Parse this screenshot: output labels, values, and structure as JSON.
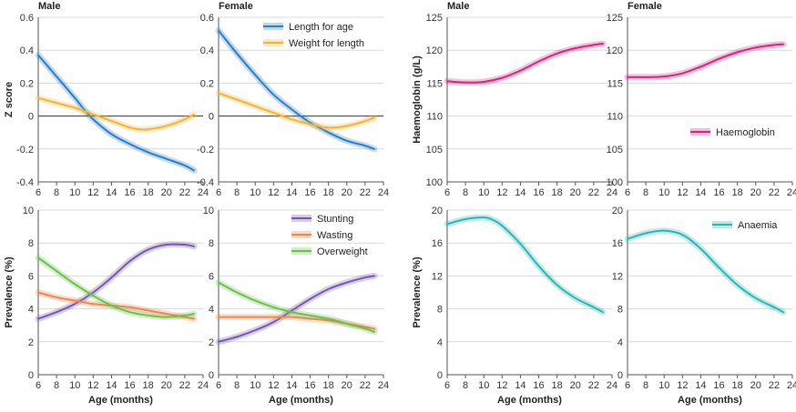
{
  "chart_data": [
    {
      "type": "line",
      "title": "Male",
      "ylabel": "Z score",
      "xlabel": "",
      "xlim": [
        6,
        24
      ],
      "ylim": [
        -0.4,
        0.6
      ],
      "xticks": [
        6,
        8,
        10,
        12,
        14,
        16,
        18,
        20,
        22,
        24
      ],
      "yticks": [
        -0.4,
        -0.2,
        0,
        0.2,
        0.4,
        0.6
      ],
      "reference_line": 0,
      "grid": "horizontal",
      "series": [
        {
          "name": "Length for age",
          "color": "#2a7ec8",
          "x": [
            6,
            8,
            10,
            11,
            12,
            14,
            16,
            18,
            20,
            22,
            23
          ],
          "y": [
            0.37,
            0.24,
            0.11,
            0.04,
            -0.02,
            -0.11,
            -0.17,
            -0.22,
            -0.26,
            -0.3,
            -0.33
          ]
        },
        {
          "name": "Weight for length",
          "color": "#f5b335",
          "x": [
            6,
            8,
            10,
            12,
            14,
            16,
            17,
            18,
            20,
            22,
            23
          ],
          "y": [
            0.11,
            0.08,
            0.05,
            0.01,
            -0.03,
            -0.07,
            -0.08,
            -0.08,
            -0.06,
            -0.02,
            0.01
          ]
        }
      ]
    },
    {
      "type": "line",
      "title": "Female",
      "ylabel": "",
      "xlabel": "",
      "xlim": [
        6,
        24
      ],
      "ylim": [
        -0.4,
        0.6
      ],
      "xticks": [
        6,
        8,
        10,
        12,
        14,
        16,
        18,
        20,
        22,
        24
      ],
      "yticks": [
        -0.4,
        -0.2,
        0,
        0.2,
        0.4,
        0.6
      ],
      "reference_line": 0,
      "grid": "horizontal",
      "legend": "top-right",
      "series": [
        {
          "name": "Length for age",
          "color": "#2a7ec8",
          "x": [
            6,
            8,
            10,
            12,
            14,
            16,
            18,
            20,
            22,
            23
          ],
          "y": [
            0.52,
            0.38,
            0.25,
            0.13,
            0.04,
            -0.04,
            -0.1,
            -0.15,
            -0.18,
            -0.2
          ]
        },
        {
          "name": "Weight for length",
          "color": "#f5b335",
          "x": [
            6,
            8,
            10,
            12,
            14,
            16,
            18,
            20,
            22,
            23
          ],
          "y": [
            0.14,
            0.1,
            0.06,
            0.02,
            -0.02,
            -0.05,
            -0.07,
            -0.06,
            -0.03,
            -0.01
          ]
        }
      ]
    },
    {
      "type": "line",
      "title": "Male",
      "ylabel": "Haemoglobin (g/L)",
      "xlabel": "",
      "xlim": [
        6,
        24
      ],
      "ylim": [
        100,
        125
      ],
      "xticks": [
        6,
        8,
        10,
        12,
        14,
        16,
        18,
        20,
        22,
        24
      ],
      "yticks": [
        100,
        105,
        110,
        115,
        120,
        125
      ],
      "grid": "horizontal",
      "series": [
        {
          "name": "Haemoglobin",
          "color": "#d6237f",
          "x": [
            6,
            8,
            10,
            12,
            14,
            16,
            18,
            20,
            22,
            23
          ],
          "y": [
            115.3,
            115.1,
            115.2,
            115.8,
            116.9,
            118.3,
            119.5,
            120.3,
            120.8,
            121.0
          ]
        }
      ]
    },
    {
      "type": "line",
      "title": "Female",
      "ylabel": "",
      "xlabel": "",
      "xlim": [
        6,
        24
      ],
      "ylim": [
        100,
        125
      ],
      "xticks": [
        6,
        8,
        10,
        12,
        14,
        16,
        18,
        20,
        22,
        24
      ],
      "yticks": [
        100,
        105,
        110,
        115,
        120,
        125
      ],
      "grid": "horizontal",
      "legend": "right",
      "series": [
        {
          "name": "Haemoglobin",
          "color": "#d6237f",
          "x": [
            6,
            8,
            10,
            12,
            14,
            16,
            18,
            20,
            22,
            23
          ],
          "y": [
            115.9,
            115.9,
            116.0,
            116.5,
            117.5,
            118.7,
            119.7,
            120.4,
            120.8,
            120.9
          ]
        }
      ]
    },
    {
      "type": "line",
      "title": "",
      "ylabel": "Prevalence (%)",
      "xlabel": "Age (months)",
      "xlim": [
        6,
        24
      ],
      "ylim": [
        0,
        10
      ],
      "xticks": [
        6,
        8,
        10,
        12,
        14,
        16,
        18,
        20,
        22,
        24
      ],
      "yticks": [
        0,
        2,
        4,
        6,
        8,
        10
      ],
      "grid": "horizontal",
      "series": [
        {
          "name": "Stunting",
          "color": "#7457b3",
          "x": [
            6,
            8,
            10,
            12,
            14,
            16,
            18,
            20,
            22,
            23
          ],
          "y": [
            3.4,
            3.8,
            4.3,
            5.0,
            5.9,
            6.9,
            7.6,
            7.9,
            7.9,
            7.8
          ]
        },
        {
          "name": "Wasting",
          "color": "#f0864b",
          "x": [
            6,
            8,
            10,
            12,
            14,
            16,
            18,
            20,
            22,
            23
          ],
          "y": [
            5.0,
            4.7,
            4.5,
            4.3,
            4.2,
            4.1,
            3.9,
            3.7,
            3.5,
            3.4
          ]
        },
        {
          "name": "Overweight",
          "color": "#6cbf4a",
          "x": [
            6,
            8,
            10,
            12,
            14,
            16,
            18,
            20,
            22,
            23
          ],
          "y": [
            7.1,
            6.3,
            5.5,
            4.8,
            4.2,
            3.8,
            3.6,
            3.5,
            3.6,
            3.7
          ]
        }
      ]
    },
    {
      "type": "line",
      "title": "",
      "ylabel": "",
      "xlabel": "Age (months)",
      "xlim": [
        6,
        24
      ],
      "ylim": [
        0,
        10
      ],
      "xticks": [
        6,
        8,
        10,
        12,
        14,
        16,
        18,
        20,
        22,
        24
      ],
      "yticks": [
        0,
        2,
        4,
        6,
        8,
        10
      ],
      "grid": "horizontal",
      "legend": "top-right",
      "series": [
        {
          "name": "Stunting",
          "color": "#7457b3",
          "x": [
            6,
            8,
            10,
            12,
            14,
            16,
            18,
            20,
            22,
            23
          ],
          "y": [
            2.0,
            2.3,
            2.7,
            3.2,
            3.9,
            4.6,
            5.2,
            5.6,
            5.9,
            6.0
          ]
        },
        {
          "name": "Wasting",
          "color": "#f0864b",
          "x": [
            6,
            8,
            10,
            12,
            14,
            16,
            18,
            20,
            22,
            23
          ],
          "y": [
            3.5,
            3.5,
            3.5,
            3.5,
            3.5,
            3.4,
            3.3,
            3.1,
            2.9,
            2.8
          ]
        },
        {
          "name": "Overweight",
          "color": "#6cbf4a",
          "x": [
            6,
            8,
            10,
            12,
            14,
            16,
            18,
            20,
            22,
            23
          ],
          "y": [
            5.6,
            5.0,
            4.5,
            4.1,
            3.8,
            3.6,
            3.4,
            3.1,
            2.8,
            2.6
          ]
        }
      ]
    },
    {
      "type": "line",
      "title": "",
      "ylabel": "Prevalence (%)",
      "xlabel": "Age (months)",
      "xlim": [
        6,
        24
      ],
      "ylim": [
        0,
        20
      ],
      "xticks": [
        6,
        8,
        10,
        12,
        14,
        16,
        18,
        20,
        22,
        24
      ],
      "yticks": [
        0,
        4,
        8,
        12,
        16,
        20
      ],
      "grid": "horizontal",
      "series": [
        {
          "name": "Anaemia",
          "color": "#2bb6b0",
          "x": [
            6,
            8,
            10,
            11,
            12,
            14,
            16,
            18,
            20,
            22,
            23
          ],
          "y": [
            18.3,
            18.9,
            19.1,
            18.8,
            18.1,
            15.9,
            13.2,
            10.9,
            9.3,
            8.2,
            7.6
          ]
        }
      ]
    },
    {
      "type": "line",
      "title": "",
      "ylabel": "",
      "xlabel": "Age (months)",
      "xlim": [
        6,
        24
      ],
      "ylim": [
        0,
        20
      ],
      "xticks": [
        6,
        8,
        10,
        12,
        14,
        16,
        18,
        20,
        22,
        24
      ],
      "yticks": [
        0,
        4,
        8,
        12,
        16,
        20
      ],
      "grid": "horizontal",
      "legend": "top-right",
      "series": [
        {
          "name": "Anaemia",
          "color": "#2bb6b0",
          "x": [
            6,
            8,
            10,
            12,
            14,
            16,
            18,
            20,
            22,
            23
          ],
          "y": [
            16.5,
            17.2,
            17.5,
            17.0,
            15.3,
            13.0,
            10.9,
            9.3,
            8.2,
            7.6
          ]
        }
      ]
    }
  ]
}
